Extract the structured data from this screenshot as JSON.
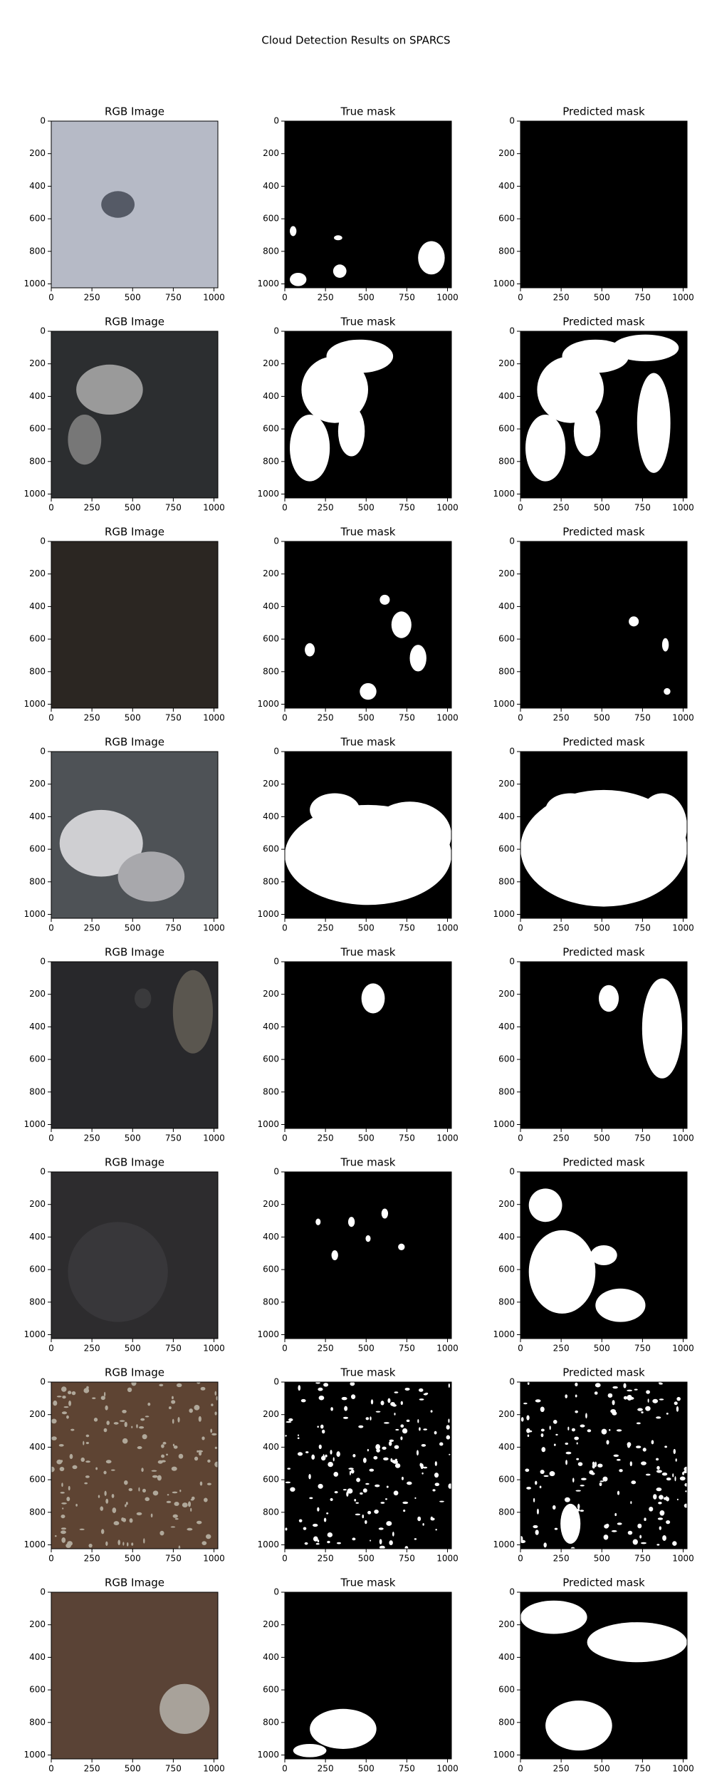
{
  "title": "Cloud Detection Results on SPARCS",
  "chart_data": [
    {
      "type": "image",
      "title": "RGB Image",
      "xlim": [
        0,
        1024
      ],
      "ylim": [
        1024,
        0
      ],
      "xticks": [
        0,
        250,
        500,
        750,
        1000
      ],
      "yticks": [
        0,
        200,
        400,
        600,
        800,
        1000
      ]
    },
    {
      "type": "image",
      "title": "True mask",
      "xlim": [
        0,
        1024
      ],
      "ylim": [
        1024,
        0
      ],
      "xticks": [
        0,
        250,
        500,
        750,
        1000
      ],
      "yticks": [
        0,
        200,
        400,
        600,
        800,
        1000
      ]
    },
    {
      "type": "image",
      "title": "Predicted mask",
      "xlim": [
        0,
        1024
      ],
      "ylim": [
        1024,
        0
      ],
      "xticks": [
        0,
        250,
        500,
        750,
        1000
      ],
      "yticks": [
        0,
        200,
        400,
        600,
        800,
        1000
      ]
    },
    {
      "type": "image",
      "title": "RGB Image",
      "xlim": [
        0,
        1024
      ],
      "ylim": [
        1024,
        0
      ],
      "xticks": [
        0,
        250,
        500,
        750,
        1000
      ],
      "yticks": [
        0,
        200,
        400,
        600,
        800,
        1000
      ]
    },
    {
      "type": "image",
      "title": "True mask",
      "xlim": [
        0,
        1024
      ],
      "ylim": [
        1024,
        0
      ],
      "xticks": [
        0,
        250,
        500,
        750,
        1000
      ],
      "yticks": [
        0,
        200,
        400,
        600,
        800,
        1000
      ]
    },
    {
      "type": "image",
      "title": "Predicted mask",
      "xlim": [
        0,
        1024
      ],
      "ylim": [
        1024,
        0
      ],
      "xticks": [
        0,
        250,
        500,
        750,
        1000
      ],
      "yticks": [
        0,
        200,
        400,
        600,
        800,
        1000
      ]
    },
    {
      "type": "image",
      "title": "RGB Image",
      "xlim": [
        0,
        1024
      ],
      "ylim": [
        1024,
        0
      ],
      "xticks": [
        0,
        250,
        500,
        750,
        1000
      ],
      "yticks": [
        0,
        200,
        400,
        600,
        800,
        1000
      ]
    },
    {
      "type": "image",
      "title": "True mask",
      "xlim": [
        0,
        1024
      ],
      "ylim": [
        1024,
        0
      ],
      "xticks": [
        0,
        250,
        500,
        750,
        1000
      ],
      "yticks": [
        0,
        200,
        400,
        600,
        800,
        1000
      ]
    },
    {
      "type": "image",
      "title": "Predicted mask",
      "xlim": [
        0,
        1024
      ],
      "ylim": [
        1024,
        0
      ],
      "xticks": [
        0,
        250,
        500,
        750,
        1000
      ],
      "yticks": [
        0,
        200,
        400,
        600,
        800,
        1000
      ]
    },
    {
      "type": "image",
      "title": "RGB Image",
      "xlim": [
        0,
        1024
      ],
      "ylim": [
        1024,
        0
      ],
      "xticks": [
        0,
        250,
        500,
        750,
        1000
      ],
      "yticks": [
        0,
        200,
        400,
        600,
        800,
        1000
      ]
    },
    {
      "type": "image",
      "title": "True mask",
      "xlim": [
        0,
        1024
      ],
      "ylim": [
        1024,
        0
      ],
      "xticks": [
        0,
        250,
        500,
        750,
        1000
      ],
      "yticks": [
        0,
        200,
        400,
        600,
        800,
        1000
      ]
    },
    {
      "type": "image",
      "title": "Predicted mask",
      "xlim": [
        0,
        1024
      ],
      "ylim": [
        1024,
        0
      ],
      "xticks": [
        0,
        250,
        500,
        750,
        1000
      ],
      "yticks": [
        0,
        200,
        400,
        600,
        800,
        1000
      ]
    },
    {
      "type": "image",
      "title": "RGB Image",
      "xlim": [
        0,
        1024
      ],
      "ylim": [
        1024,
        0
      ],
      "xticks": [
        0,
        250,
        500,
        750,
        1000
      ],
      "yticks": [
        0,
        200,
        400,
        600,
        800,
        1000
      ]
    },
    {
      "type": "image",
      "title": "True mask",
      "xlim": [
        0,
        1024
      ],
      "ylim": [
        1024,
        0
      ],
      "xticks": [
        0,
        250,
        500,
        750,
        1000
      ],
      "yticks": [
        0,
        200,
        400,
        600,
        800,
        1000
      ]
    },
    {
      "type": "image",
      "title": "Predicted mask",
      "xlim": [
        0,
        1024
      ],
      "ylim": [
        1024,
        0
      ],
      "xticks": [
        0,
        250,
        500,
        750,
        1000
      ],
      "yticks": [
        0,
        200,
        400,
        600,
        800,
        1000
      ]
    },
    {
      "type": "image",
      "title": "RGB Image",
      "xlim": [
        0,
        1024
      ],
      "ylim": [
        1024,
        0
      ],
      "xticks": [
        0,
        250,
        500,
        750,
        1000
      ],
      "yticks": [
        0,
        200,
        400,
        600,
        800,
        1000
      ]
    },
    {
      "type": "image",
      "title": "True mask",
      "xlim": [
        0,
        1024
      ],
      "ylim": [
        1024,
        0
      ],
      "xticks": [
        0,
        250,
        500,
        750,
        1000
      ],
      "yticks": [
        0,
        200,
        400,
        600,
        800,
        1000
      ]
    },
    {
      "type": "image",
      "title": "Predicted mask",
      "xlim": [
        0,
        1024
      ],
      "ylim": [
        1024,
        0
      ],
      "xticks": [
        0,
        250,
        500,
        750,
        1000
      ],
      "yticks": [
        0,
        200,
        400,
        600,
        800,
        1000
      ]
    },
    {
      "type": "image",
      "title": "RGB Image",
      "xlim": [
        0,
        1024
      ],
      "ylim": [
        1024,
        0
      ],
      "xticks": [
        0,
        250,
        500,
        750,
        1000
      ],
      "yticks": [
        0,
        200,
        400,
        600,
        800,
        1000
      ]
    },
    {
      "type": "image",
      "title": "True mask",
      "xlim": [
        0,
        1024
      ],
      "ylim": [
        1024,
        0
      ],
      "xticks": [
        0,
        250,
        500,
        750,
        1000
      ],
      "yticks": [
        0,
        200,
        400,
        600,
        800,
        1000
      ]
    },
    {
      "type": "image",
      "title": "Predicted mask",
      "xlim": [
        0,
        1024
      ],
      "ylim": [
        1024,
        0
      ],
      "xticks": [
        0,
        250,
        500,
        750,
        1000
      ],
      "yticks": [
        0,
        200,
        400,
        600,
        800,
        1000
      ]
    },
    {
      "type": "image",
      "title": "RGB Image",
      "xlim": [
        0,
        1024
      ],
      "ylim": [
        1024,
        0
      ],
      "xticks": [
        0,
        250,
        500,
        750,
        1000
      ],
      "yticks": [
        0,
        200,
        400,
        600,
        800,
        1000
      ]
    },
    {
      "type": "image",
      "title": "True mask",
      "xlim": [
        0,
        1024
      ],
      "ylim": [
        1024,
        0
      ],
      "xticks": [
        0,
        250,
        500,
        750,
        1000
      ],
      "yticks": [
        0,
        200,
        400,
        600,
        800,
        1000
      ]
    },
    {
      "type": "image",
      "title": "Predicted mask",
      "xlim": [
        0,
        1024
      ],
      "ylim": [
        1024,
        0
      ],
      "xticks": [
        0,
        250,
        500,
        750,
        1000
      ],
      "yticks": [
        0,
        200,
        400,
        600,
        800,
        1000
      ]
    }
  ]
}
